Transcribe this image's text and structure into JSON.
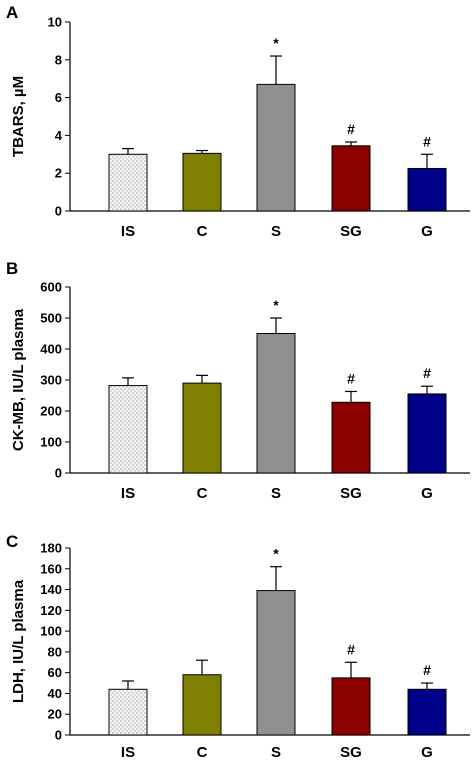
{
  "chart_data": [
    {
      "type": "bar",
      "panel_label": "A",
      "ylabel": "TBARS, µM",
      "ylim": [
        0,
        10
      ],
      "yticks": [
        "0",
        "2",
        "4",
        "6",
        "8",
        "10"
      ],
      "categories": [
        "IS",
        "C",
        "S",
        "SG",
        "G"
      ],
      "values": [
        3.0,
        3.05,
        6.7,
        3.45,
        2.25
      ],
      "errors": [
        0.3,
        0.15,
        1.5,
        0.2,
        0.75
      ],
      "annotations": [
        "",
        "",
        "*",
        "#",
        "#"
      ],
      "colors": [
        "#f4f4f4",
        "#808000",
        "#909090",
        "#8b0000",
        "#00008b"
      ]
    },
    {
      "type": "bar",
      "panel_label": "B",
      "ylabel": "CK-MB, IU/L plasma",
      "ylim": [
        0,
        600
      ],
      "yticks": [
        "0",
        "100",
        "200",
        "300",
        "400",
        "500",
        "600"
      ],
      "categories": [
        "IS",
        "C",
        "S",
        "SG",
        "G"
      ],
      "values": [
        282,
        290,
        450,
        228,
        255
      ],
      "errors": [
        25,
        25,
        50,
        35,
        25
      ],
      "annotations": [
        "",
        "",
        "*",
        "#",
        "#"
      ],
      "colors": [
        "#f4f4f4",
        "#808000",
        "#909090",
        "#8b0000",
        "#00008b"
      ]
    },
    {
      "type": "bar",
      "panel_label": "C",
      "ylabel": "LDH, IU/L plasma",
      "ylim": [
        0,
        180
      ],
      "yticks": [
        "0",
        "20",
        "40",
        "60",
        "80",
        "100",
        "120",
        "140",
        "160",
        "180"
      ],
      "categories": [
        "IS",
        "C",
        "S",
        "SG",
        "G"
      ],
      "values": [
        44,
        58,
        139,
        55,
        44
      ],
      "errors": [
        8,
        14,
        23,
        15,
        6
      ],
      "annotations": [
        "",
        "",
        "*",
        "#",
        "#"
      ],
      "colors": [
        "#f4f4f4",
        "#808000",
        "#909090",
        "#8b0000",
        "#00008b"
      ]
    }
  ]
}
